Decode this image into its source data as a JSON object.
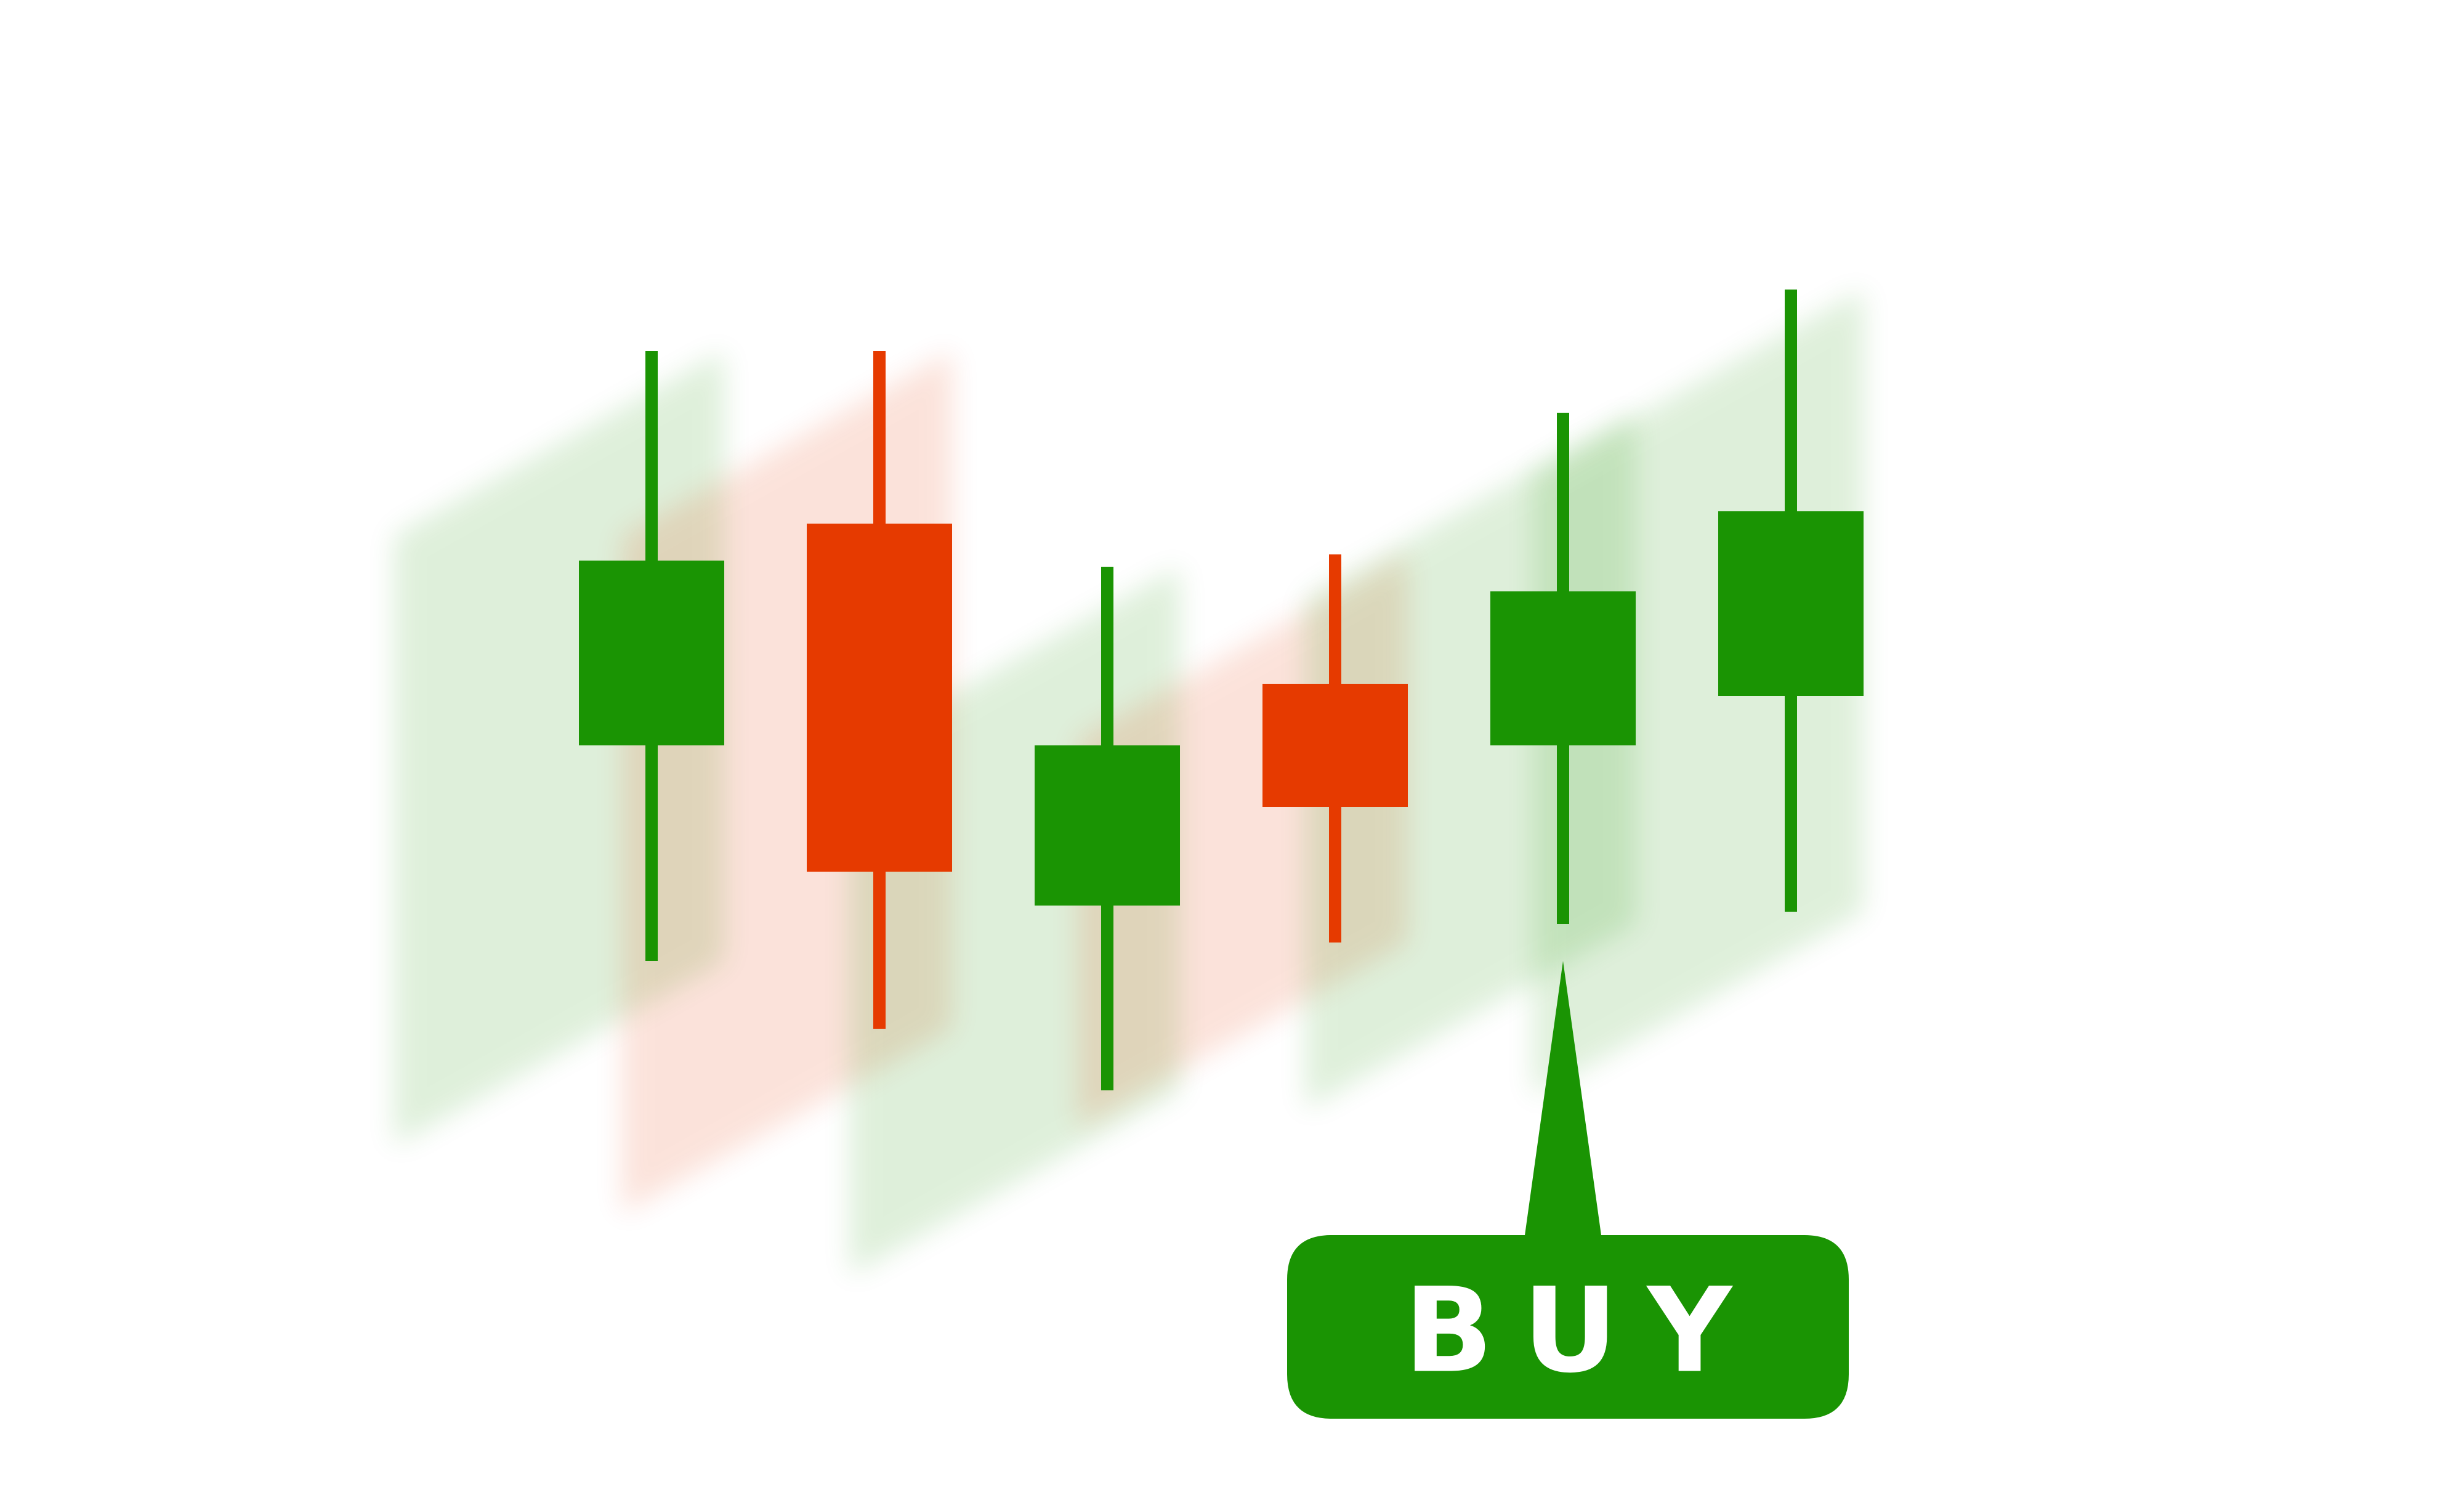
{
  "colors": {
    "bullish": "#1a9403",
    "bearish": "#e63a00",
    "background": "#ffffff",
    "signal_text": "#ffffff"
  },
  "chart_data": {
    "type": "candlestick",
    "title": "",
    "xlabel": "",
    "ylabel": "",
    "axes_visible": false,
    "grid": false,
    "legend": "none",
    "ylim": [
      0,
      100
    ],
    "candles": [
      {
        "open": 27.0,
        "close": 57.0,
        "high": 91.0,
        "low": -8.0,
        "direction": "bullish"
      },
      {
        "open": 63.0,
        "close": 6.5,
        "high": 91.0,
        "low": -19.0,
        "direction": "bearish"
      },
      {
        "open": 1.0,
        "close": 27.0,
        "high": 56.0,
        "low": -29.0,
        "direction": "bullish"
      },
      {
        "open": 37.0,
        "close": 17.0,
        "high": 58.0,
        "low": -5.0,
        "direction": "bearish"
      },
      {
        "open": 27.0,
        "close": 52.0,
        "high": 81.0,
        "low": -2.0,
        "direction": "bullish"
      },
      {
        "open": 35.0,
        "close": 65.0,
        "high": 101.0,
        "low": 0.0,
        "direction": "bullish"
      }
    ],
    "signal": {
      "label": "BUY",
      "candle_index": 4,
      "color": "#1a9403"
    }
  }
}
